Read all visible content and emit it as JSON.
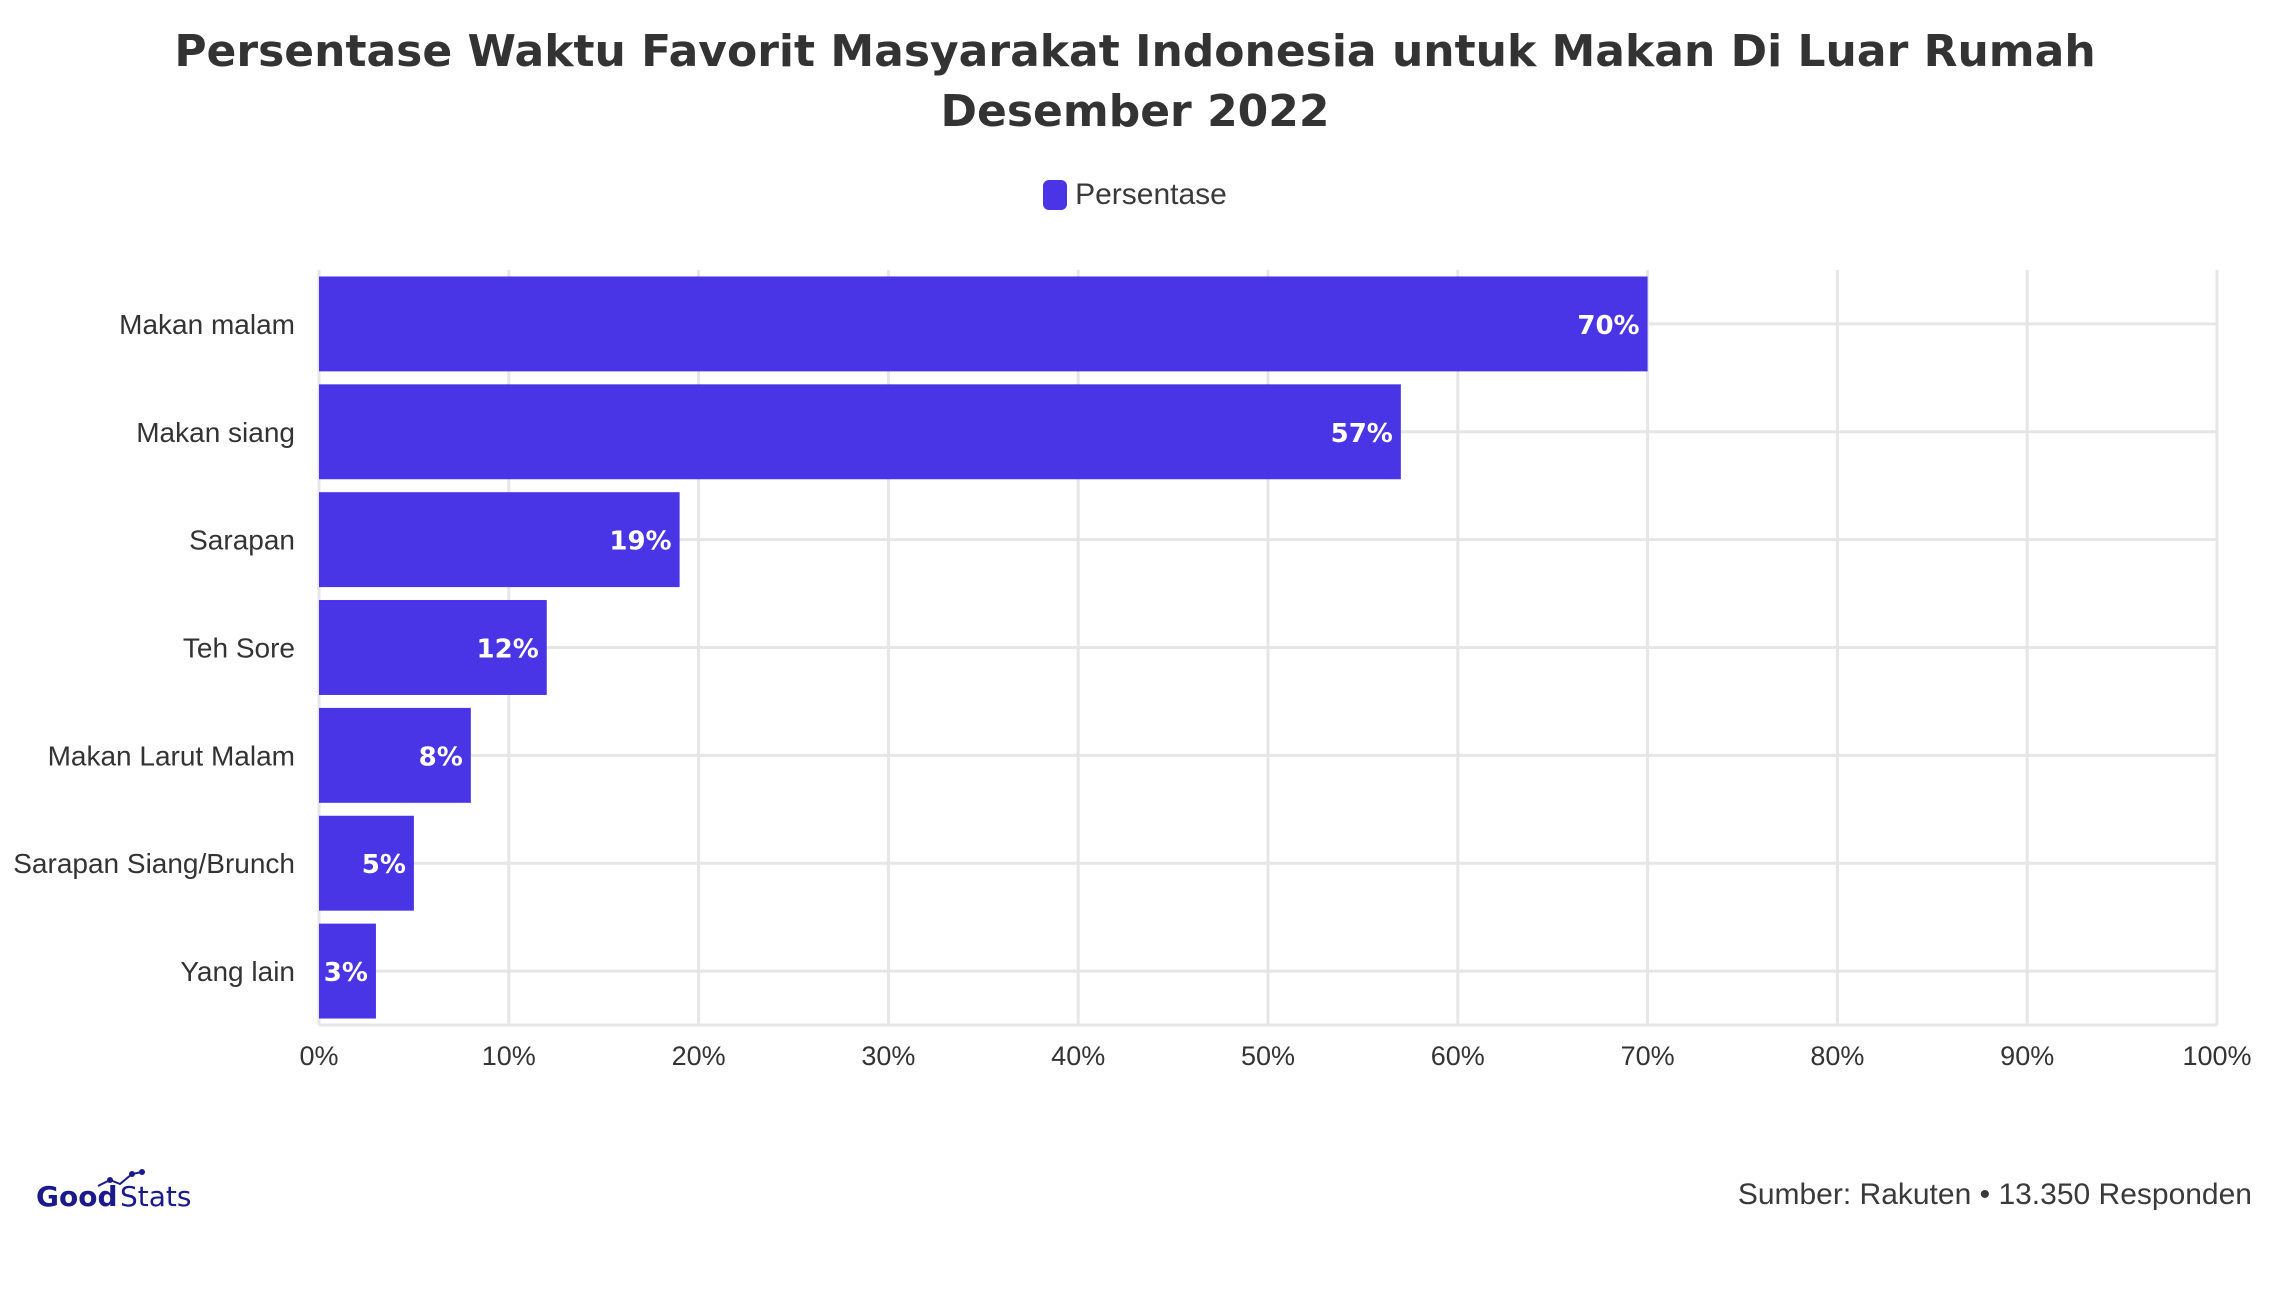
{
  "chart_data": {
    "type": "bar",
    "orientation": "horizontal",
    "title": "Persentase Waktu Favorit Masyarakat Indonesia untuk Makan Di Luar Rumah",
    "subtitle": "Desember 2022",
    "categories": [
      "Makan malam",
      "Makan siang",
      "Sarapan",
      "Teh Sore",
      "Makan Larut Malam",
      "Sarapan Siang/Brunch",
      "Yang lain"
    ],
    "series": [
      {
        "name": "Persentase",
        "values": [
          70,
          57,
          19,
          12,
          8,
          5,
          3
        ]
      }
    ],
    "data_labels": [
      "70%",
      "57%",
      "19%",
      "12%",
      "8%",
      "5%",
      "3%"
    ],
    "xlim": [
      0,
      100
    ],
    "x_ticks": [
      0,
      10,
      20,
      30,
      40,
      50,
      60,
      70,
      80,
      90,
      100
    ],
    "x_tick_labels": [
      "0%",
      "10%",
      "20%",
      "30%",
      "40%",
      "50%",
      "60%",
      "70%",
      "80%",
      "90%",
      "100%"
    ],
    "grid": true,
    "legend": "top-center",
    "bar_color": "#4a35e6",
    "grid_color": "#e6e6e6"
  },
  "footer": {
    "source": "Sumber: Rakuten • 13.350 Responden",
    "logo_left": "Good",
    "logo_right": "Stats"
  }
}
